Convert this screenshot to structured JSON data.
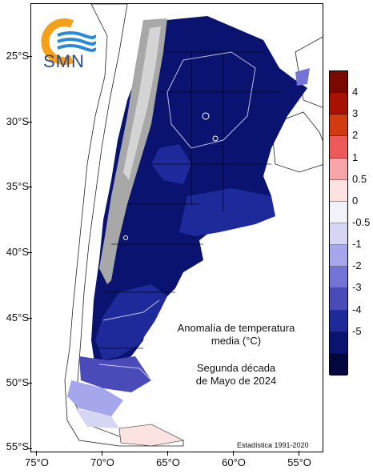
{
  "logo": {
    "text": "SMN"
  },
  "caption": {
    "title_line1": "Anomalía de temperatura",
    "title_line2": "media (°C)",
    "period_line1": "Segunda década",
    "period_line2": "de Mayo de 2024"
  },
  "stats_note": "Estadística 1991-2020",
  "axes": {
    "lat_labels": [
      "25°S",
      "30°S",
      "35°S",
      "40°S",
      "45°S",
      "50°S",
      "55°S"
    ],
    "lon_labels": [
      "75°O",
      "70°O",
      "65°O",
      "60°O",
      "55°O"
    ]
  },
  "legend": {
    "labels": [
      "4",
      "3",
      "2",
      "1",
      "0.5",
      "0",
      "-0.5",
      "-1",
      "-2",
      "-3",
      "-4",
      "-5"
    ],
    "colors": [
      "#7a0a00",
      "#a81200",
      "#d23a10",
      "#ec5a5a",
      "#f8a4a8",
      "#fde2e2",
      "#f2f2fb",
      "#d6d6f4",
      "#a6a6ec",
      "#7474d8",
      "#4a4ab8",
      "#1e2a9a",
      "#0a1470",
      "#02083e"
    ]
  },
  "colors": {
    "ocean": "#ffffff",
    "land_outside": "#ffffff",
    "mountains": "#a8a8a8",
    "deep_cold": "#0a1470",
    "mid_cold": "#1e2a9a",
    "logo_orange": "#f5a01a",
    "logo_blue": "#2a8ad6"
  }
}
